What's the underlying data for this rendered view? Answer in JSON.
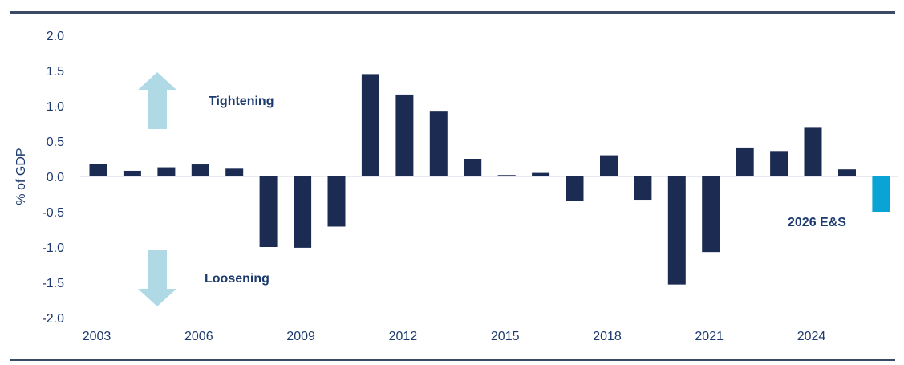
{
  "chart_data": {
    "type": "bar",
    "title": "",
    "xlabel": "",
    "ylabel": "% of GDP",
    "ylim": [
      -2.0,
      2.0
    ],
    "yticks": [
      "2.0",
      "1.5",
      "1.0",
      "0.5",
      "0.0",
      "-0.5",
      "-1.0",
      "-1.5",
      "-2.0"
    ],
    "ytick_values": [
      2.0,
      1.5,
      1.0,
      0.5,
      0.0,
      -0.5,
      -1.0,
      -1.5,
      -2.0
    ],
    "xtick_labels": [
      "2003",
      "2006",
      "2009",
      "2012",
      "2015",
      "2018",
      "2021",
      "2024"
    ],
    "grid": false,
    "categories": [
      "2003",
      "2004",
      "2005",
      "2006",
      "2007",
      "2008",
      "2009",
      "2010",
      "2011",
      "2012",
      "2013",
      "2014",
      "2015",
      "2016",
      "2017",
      "2018",
      "2019",
      "2020",
      "2021",
      "2022",
      "2023",
      "2024",
      "2025",
      "2026"
    ],
    "values": [
      0.18,
      0.08,
      0.13,
      0.17,
      0.11,
      -1.0,
      -1.01,
      -0.71,
      1.45,
      1.16,
      0.93,
      0.25,
      0.02,
      0.05,
      -0.35,
      0.3,
      -0.33,
      -1.53,
      -1.07,
      0.41,
      0.36,
      0.7,
      0.1,
      -0.5
    ],
    "highlight": {
      "category": "2026",
      "label": "2026 E&S"
    },
    "annotations": [
      {
        "text": "Tightening",
        "direction": "up"
      },
      {
        "text": "Loosening",
        "direction": "down"
      },
      {
        "text": "2026 E&S"
      }
    ],
    "colors": {
      "bar": "#1c2b52",
      "highlight": "#09a3d6",
      "arrow": "#b0d9e6",
      "text": "#1c3a6e",
      "zero_line": "#cfd6e0"
    }
  },
  "annotations": {
    "tightening": "Tightening",
    "loosening": "Loosening",
    "estimate": "2026 E&S"
  },
  "axis": {
    "ylabel": "% of GDP"
  }
}
